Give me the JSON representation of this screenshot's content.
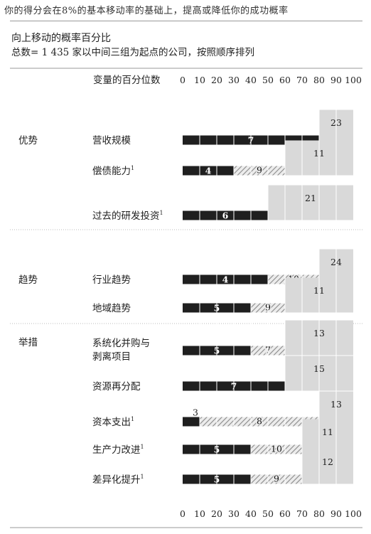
{
  "header": {
    "title": "你的得分会在8%的基本移动率的基础上，提高或降低你的成功概率"
  },
  "chart_data": {
    "type": "bar",
    "title": "向上移动的概率百分比",
    "subtitle": "总数= 1 435 家以中间三组为起点的公司，按照顺序排列",
    "column_header": "变量的百分位数",
    "xlim": [
      0,
      100
    ],
    "x_ticks": [
      0,
      10,
      20,
      30,
      40,
      50,
      60,
      70,
      80,
      90,
      100
    ],
    "segment_styles": [
      "solid",
      "hatched",
      "light"
    ],
    "colors": {
      "solid": "#1f1f1f",
      "hatched": "#8a8a8a",
      "light": "#d9d9d9",
      "grid": "#ffffff"
    },
    "groups": [
      {
        "name": "优势"
      },
      {
        "name": "趋势"
      },
      {
        "name": "举措"
      }
    ],
    "rows": [
      {
        "label": "营收规模",
        "group": 0,
        "segments": [
          {
            "style": "solid",
            "start": 0,
            "end": 80,
            "label": "7"
          },
          {
            "style": "light",
            "start": 80,
            "end": 100,
            "label": "23"
          }
        ]
      },
      {
        "label": "偿债能力",
        "sup": "1",
        "group": 0,
        "segments": [
          {
            "style": "solid",
            "start": 0,
            "end": 30,
            "label": "4"
          },
          {
            "style": "hatched",
            "start": 30,
            "end": 60,
            "label": "9"
          },
          {
            "style": "light",
            "start": 60,
            "end": 100,
            "label": "11"
          }
        ]
      },
      {
        "label": "过去的研发投资",
        "sup": "1",
        "group": 0,
        "segments": [
          {
            "style": "solid",
            "start": 0,
            "end": 50,
            "label": "6"
          },
          {
            "style": "light",
            "start": 50,
            "end": 100,
            "label": "21"
          }
        ]
      },
      {
        "label": "行业趋势",
        "group": 1,
        "segments": [
          {
            "style": "solid",
            "start": 0,
            "end": 50,
            "label": "4"
          },
          {
            "style": "hatched",
            "start": 50,
            "end": 80,
            "label": "10"
          },
          {
            "style": "light",
            "start": 80,
            "end": 100,
            "label": "24"
          }
        ]
      },
      {
        "label": "地域趋势",
        "group": 1,
        "segments": [
          {
            "style": "solid",
            "start": 0,
            "end": 40,
            "label": "5"
          },
          {
            "style": "hatched",
            "start": 40,
            "end": 60,
            "label": "9"
          },
          {
            "style": "light",
            "start": 60,
            "end": 100,
            "label": "11"
          }
        ]
      },
      {
        "label": "系统化并购与剥离项目",
        "label_lines": [
          "系统化并购与",
          "剥离项目"
        ],
        "group": 2,
        "segments": [
          {
            "style": "solid",
            "start": 0,
            "end": 40,
            "label": "5"
          },
          {
            "style": "hatched",
            "start": 40,
            "end": 60,
            "label": "7"
          },
          {
            "style": "light",
            "start": 60,
            "end": 100,
            "label": "13"
          }
        ]
      },
      {
        "label": "资源再分配",
        "group": 2,
        "segments": [
          {
            "style": "solid",
            "start": 0,
            "end": 60,
            "label": "7"
          },
          {
            "style": "light",
            "start": 60,
            "end": 100,
            "label": "15"
          }
        ]
      },
      {
        "label": "资本支出",
        "sup": "1",
        "group": 2,
        "segments": [
          {
            "style": "solid",
            "start": 0,
            "end": 10,
            "label": "3"
          },
          {
            "style": "hatched",
            "start": 10,
            "end": 80,
            "label": "8"
          },
          {
            "style": "light",
            "start": 80,
            "end": 100,
            "label": "13"
          }
        ]
      },
      {
        "label": "生产力改进",
        "sup": "1",
        "group": 2,
        "segments": [
          {
            "style": "solid",
            "start": 0,
            "end": 40,
            "label": "5"
          },
          {
            "style": "hatched",
            "start": 40,
            "end": 70,
            "label": "10"
          },
          {
            "style": "light",
            "start": 70,
            "end": 100,
            "label": "11"
          }
        ]
      },
      {
        "label": "差异化提升",
        "sup": "1",
        "group": 2,
        "segments": [
          {
            "style": "solid",
            "start": 0,
            "end": 40,
            "label": "5"
          },
          {
            "style": "hatched",
            "start": 40,
            "end": 70,
            "label": "9"
          },
          {
            "style": "light",
            "start": 70,
            "end": 100,
            "label": "12"
          }
        ]
      }
    ]
  }
}
